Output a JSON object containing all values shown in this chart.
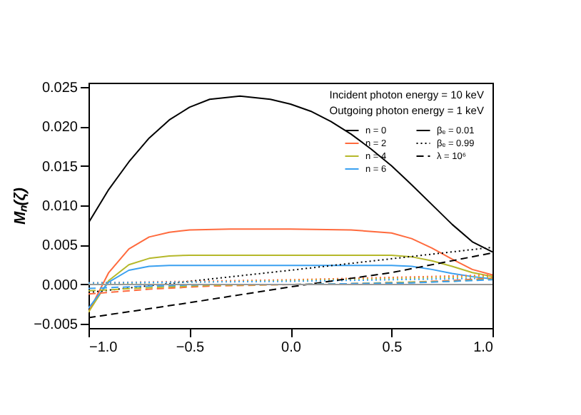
{
  "chart_data": {
    "type": "line",
    "ylabel": "Mₙ(ζ)",
    "annotations": [
      "Incident photon energy = 10 keV",
      "Outgoing photon energy = 1 keV",
      "βₑ = 0.01",
      "βₑ = 0.99",
      "λ = 10⁶"
    ],
    "legend": "top right",
    "grid": false,
    "line_style": "solid",
    "xlim": [
      -1,
      1
    ],
    "xticks": [
      {
        "value": -1,
        "label": "−1.0"
      },
      {
        "value": -0.5,
        "label": "−0.5"
      },
      {
        "value": 0,
        "label": "0.0"
      },
      {
        "value": 0.5,
        "label": "0.5"
      },
      {
        "value": 1,
        "label": "1.0"
      }
    ],
    "ylim": [
      -0.0055,
      0.0255
    ],
    "yticks": [
      {
        "value": -0.005,
        "label": "−0.005"
      },
      {
        "value": 0,
        "label": "0.000"
      },
      {
        "value": 0.005,
        "label": "0.005"
      },
      {
        "value": 0.01,
        "label": "0.010"
      },
      {
        "value": 0.015,
        "label": "0.015"
      },
      {
        "value": 0.02,
        "label": "0.020"
      },
      {
        "value": 0.025,
        "label": "0.025"
      }
    ],
    "ref_lines": [
      {
        "axis": "y",
        "value": 0,
        "color": "#999999"
      }
    ],
    "series": [
      {
        "name": "n = 0",
        "color": "#000000",
        "x": [
          -1,
          -0.9,
          -0.8,
          -0.7,
          -0.6,
          -0.5,
          -0.4,
          -0.25,
          -0.1,
          0,
          0.1,
          0.2,
          0.3,
          0.4,
          0.5,
          0.6,
          0.7,
          0.8,
          0.9,
          1
        ],
        "values": [
          0.0078,
          0.012,
          0.0155,
          0.0185,
          0.0208,
          0.0224,
          0.0234,
          0.0238,
          0.0234,
          0.0228,
          0.0219,
          0.0206,
          0.019,
          0.0171,
          0.015,
          0.0126,
          0.0101,
          0.0076,
          0.0054,
          0.0041
        ]
      },
      {
        "name": "n = 2",
        "color": "#ff6a3d",
        "x": [
          -1,
          -0.95,
          -0.9,
          -0.8,
          -0.7,
          -0.6,
          -0.5,
          -0.3,
          0,
          0.3,
          0.5,
          0.6,
          0.7,
          0.8,
          0.9,
          1
        ],
        "values": [
          -0.0035,
          -0.001,
          0.0015,
          0.0045,
          0.006,
          0.0066,
          0.0069,
          0.007,
          0.007,
          0.0069,
          0.0065,
          0.0058,
          0.0046,
          0.0032,
          0.0019,
          0.0012
        ]
      },
      {
        "name": "n = 4",
        "color": "#b5b82a",
        "x": [
          -1,
          -0.9,
          -0.8,
          -0.7,
          -0.6,
          -0.5,
          0,
          0.5,
          0.6,
          0.7,
          0.8,
          0.9,
          1
        ],
        "values": [
          -0.0035,
          0.0005,
          0.0025,
          0.0033,
          0.0036,
          0.0037,
          0.0037,
          0.0037,
          0.0035,
          0.003,
          0.0023,
          0.0015,
          0.001
        ]
      },
      {
        "name": "n = 6",
        "color": "#3aa0f0",
        "x": [
          -1,
          -0.9,
          -0.8,
          -0.7,
          -0.6,
          0,
          0.5,
          0.6,
          0.7,
          0.8,
          0.9,
          1
        ],
        "values": [
          -0.003,
          0.0003,
          0.0018,
          0.0023,
          0.0024,
          0.0024,
          0.0024,
          0.0023,
          0.0019,
          0.0014,
          0.001,
          0.0007
        ]
      },
      {
        "color": "#000000",
        "line_style": "dotted",
        "x": [
          -1,
          0,
          1
        ],
        "values": [
          -0.001,
          0.0018,
          0.0047
        ]
      },
      {
        "color": "#ff6a3d",
        "line_style": "dotted",
        "x": [
          -1,
          0,
          1
        ],
        "values": [
          0.0002,
          0.0006,
          0.0012
        ]
      },
      {
        "color": "#b5b82a",
        "line_style": "dotted",
        "x": [
          -1,
          0,
          1
        ],
        "values": [
          0.0001,
          0.0005,
          0.001
        ]
      },
      {
        "color": "#3aa0f0",
        "line_style": "dotted",
        "x": [
          -1,
          0,
          1
        ],
        "values": [
          0.0002,
          0.0004,
          0.0008
        ]
      },
      {
        "color": "#000000",
        "line_style": "dashed",
        "x": [
          -1,
          -0.5,
          0,
          0.5,
          1
        ],
        "values": [
          -0.0042,
          -0.0023,
          -0.0003,
          0.0015,
          0.004
        ]
      },
      {
        "color": "#ff6a3d",
        "line_style": "dashed",
        "x": [
          -1,
          -0.7,
          -0.4,
          0,
          0.3,
          0.6,
          0.8,
          1
        ],
        "values": [
          -0.0012,
          -0.0006,
          -0.0002,
          0,
          0.0001,
          0.0003,
          0.0005,
          0.0008
        ]
      },
      {
        "color": "#b5b82a",
        "line_style": "dashed",
        "x": [
          -1,
          -0.7,
          -0.4,
          0,
          0.3,
          0.6,
          0.8,
          1
        ],
        "values": [
          -0.0008,
          -0.0004,
          -0.0001,
          0,
          0.0001,
          0.0003,
          0.0004,
          0.0007
        ]
      },
      {
        "color": "#3aa0f0",
        "line_style": "dashed",
        "x": [
          -1,
          -0.7,
          -0.4,
          0,
          0.3,
          0.6,
          0.8,
          1
        ],
        "values": [
          -0.0005,
          -0.0002,
          0,
          0,
          0.0001,
          0.0002,
          0.0004,
          0.0006
        ]
      }
    ]
  }
}
